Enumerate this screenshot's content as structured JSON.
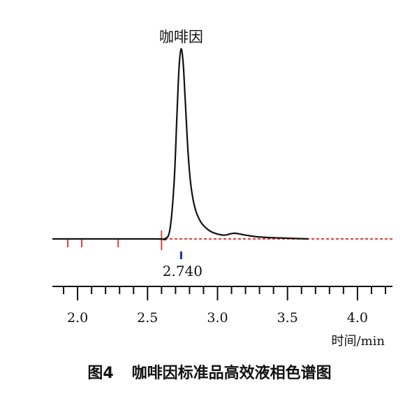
{
  "chart_data": {
    "type": "line",
    "series": [
      {
        "x": [
          1.82,
          2.55,
          2.62,
          2.66,
          2.69,
          2.71,
          2.725,
          2.74,
          2.755,
          2.77,
          2.79,
          2.81,
          2.84,
          2.88,
          2.93,
          2.98,
          3.05,
          3.12,
          3.2,
          3.3,
          3.45,
          3.65
        ],
        "y": [
          0,
          0,
          0,
          0.05,
          0.3,
          0.65,
          0.9,
          1.0,
          0.92,
          0.72,
          0.45,
          0.28,
          0.16,
          0.09,
          0.05,
          0.03,
          0.02,
          0.03,
          0.02,
          0.01,
          0.005,
          0
        ],
        "color": "#111111"
      }
    ],
    "baseline_color": "#e53b3b",
    "event_marks": [
      1.93,
      2.03,
      2.29,
      2.6
    ],
    "event_color": "#e53b3b",
    "retention_mark": 2.74,
    "retention_mark_color": "#1c2fa8",
    "peak_name": "咖啡因",
    "peak_label": "2.740",
    "xaxis": {
      "range": [
        1.82,
        4.25
      ],
      "ticks": [
        2.0,
        2.5,
        3.0,
        3.5,
        4.0
      ],
      "tick_labels": [
        "2.0",
        "2.5",
        "3.0",
        "3.5",
        "4.0"
      ],
      "minor_step": 0.1,
      "label": "时间/min"
    },
    "grid": false
  },
  "caption": {
    "figure_number": "图4",
    "title": "咖啡因标准品高效液相色谱图"
  }
}
